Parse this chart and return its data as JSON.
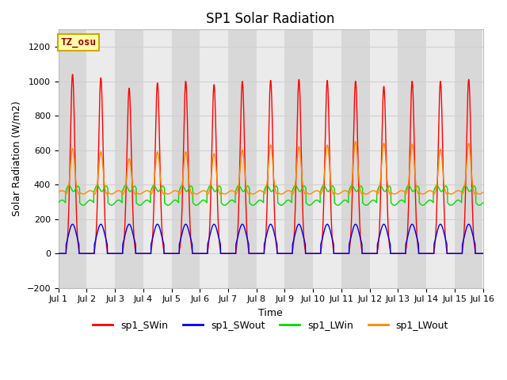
{
  "title": "SP1 Solar Radiation",
  "xlabel": "Time",
  "ylabel": "Solar Radiation (W/m2)",
  "ylim": [
    -200,
    1300
  ],
  "yticks": [
    -200,
    0,
    200,
    400,
    600,
    800,
    1000,
    1200
  ],
  "n_days": 15,
  "colors": {
    "SWin": "#ff0000",
    "SWout": "#0000ee",
    "LWin": "#00dd00",
    "LWout": "#ff8800"
  },
  "legend_labels": [
    "sp1_SWin",
    "sp1_SWout",
    "sp1_LWin",
    "sp1_LWout"
  ],
  "tz_label": "TZ_osu",
  "background_color": "#ffffff",
  "plot_bg": "#ffffff",
  "band_color_dark": "#d8d8d8",
  "band_color_light": "#ebebeb",
  "grid_color": "#d0d0d0",
  "title_fontsize": 12,
  "axis_fontsize": 9,
  "tick_fontsize": 8,
  "day_peaks_SW": [
    1040,
    1020,
    960,
    990,
    1000,
    980,
    1000,
    1005,
    1010,
    1005,
    1000,
    970,
    1000,
    1000,
    1010
  ],
  "day_peaks_LW": [
    630,
    610,
    570,
    610,
    610,
    600,
    620,
    650,
    640,
    650,
    670,
    660,
    655,
    625,
    660
  ]
}
